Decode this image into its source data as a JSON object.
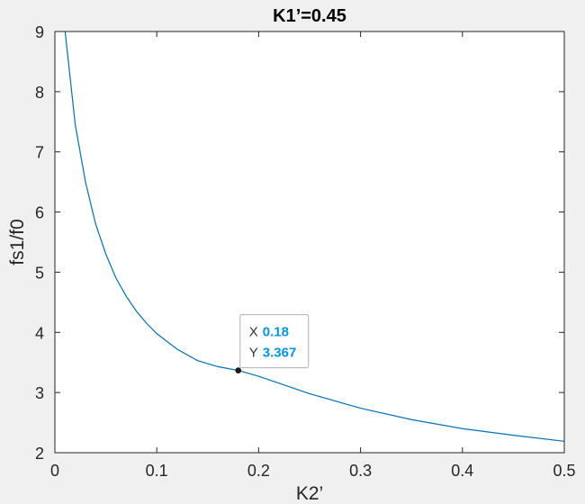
{
  "chart_data": {
    "type": "line",
    "title": "K1’=0.45",
    "xlabel": "K2’",
    "ylabel": "fs1/f0",
    "xlim": [
      0,
      0.5
    ],
    "ylim": [
      2,
      9
    ],
    "xticks": [
      "0",
      "0.1",
      "0.2",
      "0.3",
      "0.4",
      "0.5"
    ],
    "yticks": [
      "2",
      "3",
      "4",
      "5",
      "6",
      "7",
      "8",
      "9"
    ],
    "grid": false,
    "series": [
      {
        "color": "#0072bd",
        "x": [
          0.01,
          0.02,
          0.03,
          0.04,
          0.05,
          0.06,
          0.07,
          0.08,
          0.09,
          0.1,
          0.12,
          0.14,
          0.16,
          0.18,
          0.2,
          0.25,
          0.3,
          0.35,
          0.4,
          0.45,
          0.5
        ],
        "y": [
          9.0,
          7.45,
          6.5,
          5.8,
          5.3,
          4.9,
          4.6,
          4.35,
          4.15,
          3.98,
          3.72,
          3.53,
          3.43,
          3.367,
          3.27,
          2.98,
          2.74,
          2.55,
          2.4,
          2.29,
          2.19
        ]
      }
    ],
    "datatip": {
      "x_key": "X",
      "y_key": "Y",
      "x_value": "0.18",
      "y_value": "3.367",
      "x": 0.18,
      "y": 3.367,
      "value_color": "#0097e6"
    }
  }
}
